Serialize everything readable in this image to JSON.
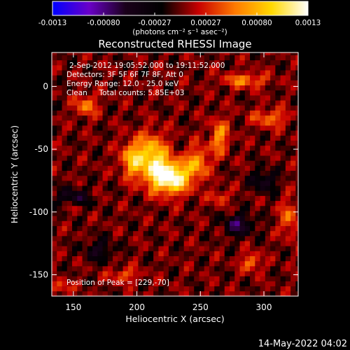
{
  "chart_data": {
    "type": "heatmap",
    "title": "Reconstructed RHESSI Image",
    "xlabel": "Heliocentric X (arcsec)",
    "ylabel": "Heliocentric Y (arcsec)",
    "xlim": [
      133,
      327
    ],
    "ylim": [
      -167,
      27
    ],
    "xticks": [
      150,
      200,
      250,
      300
    ],
    "yticks": [
      0,
      -50,
      -100,
      -150
    ],
    "colorbar": {
      "range": [
        -0.0013,
        0.0013
      ],
      "tick_labels": [
        "-0.0013",
        "-0.00080",
        "-0.00027",
        "0.00027",
        "0.00080",
        "0.0013"
      ],
      "units_label": "(photons cm⁻² s⁻¹ asec⁻²)",
      "colors": [
        "#0000ff",
        "#6a00c8",
        "#1a001a",
        "#000000",
        "#c80000",
        "#ff7a00",
        "#ffd800",
        "#ffffff"
      ]
    },
    "annotations": {
      "time_range": "2-Sep-2012 19:05:52.000 to 19:11:52.000",
      "detectors": "Detectors: 3F 5F 6F 7F 8F, Att 0",
      "energy_range": "Energy Range: 12.0 - 25.0 keV",
      "method_counts": "Clean     Total counts: 5.85E+03",
      "peak_position": "Position of Peak = [229,-70]"
    },
    "peak": {
      "x": 229,
      "y": -70
    },
    "sources": [
      {
        "x": 226,
        "y": -72,
        "amplitude": 1.0,
        "sigma_x": 11,
        "sigma_y": 9
      },
      {
        "x": 212,
        "y": -55,
        "amplitude": 0.65,
        "sigma_x": 8,
        "sigma_y": 12
      },
      {
        "x": 196,
        "y": -58,
        "amplitude": 0.55,
        "sigma_x": 6,
        "sigma_y": 10
      },
      {
        "x": 248,
        "y": -60,
        "amplitude": 0.45,
        "sigma_x": 6,
        "sigma_y": 9
      },
      {
        "x": 265,
        "y": -40,
        "amplitude": 0.45,
        "sigma_x": 5,
        "sigma_y": 10
      },
      {
        "x": 160,
        "y": -15,
        "amplitude": 0.4,
        "sigma_x": 6,
        "sigma_y": 6
      },
      {
        "x": 150,
        "y": -95,
        "amplitude": 0.35,
        "sigma_x": 5,
        "sigma_y": 4
      },
      {
        "x": 285,
        "y": 5,
        "amplitude": 0.4,
        "sigma_x": 12,
        "sigma_y": 4
      },
      {
        "x": 305,
        "y": -25,
        "amplitude": 0.35,
        "sigma_x": 10,
        "sigma_y": 5
      },
      {
        "x": 290,
        "y": -140,
        "amplitude": 0.4,
        "sigma_x": 5,
        "sigma_y": 5
      },
      {
        "x": 265,
        "y": -88,
        "amplitude": 0.3,
        "sigma_x": 5,
        "sigma_y": 4
      },
      {
        "x": 190,
        "y": -150,
        "amplitude": 0.3,
        "sigma_x": 8,
        "sigma_y": 4
      },
      {
        "x": 320,
        "y": -105,
        "amplitude": 0.35,
        "sigma_x": 5,
        "sigma_y": 10
      },
      {
        "x": 140,
        "y": -160,
        "amplitude": 0.3,
        "sigma_x": 5,
        "sigma_y": 4
      },
      {
        "x": 150,
        "y": -90,
        "amplitude": -0.45,
        "sigma_x": 8,
        "sigma_y": 6
      },
      {
        "x": 280,
        "y": -110,
        "amplitude": -0.45,
        "sigma_x": 8,
        "sigma_y": 6
      },
      {
        "x": 300,
        "y": -75,
        "amplitude": -0.35,
        "sigma_x": 7,
        "sigma_y": 6
      },
      {
        "x": 170,
        "y": -130,
        "amplitude": -0.3,
        "sigma_x": 8,
        "sigma_y": 6
      }
    ]
  },
  "footer": {
    "date": "14-May-2022 04:02"
  }
}
